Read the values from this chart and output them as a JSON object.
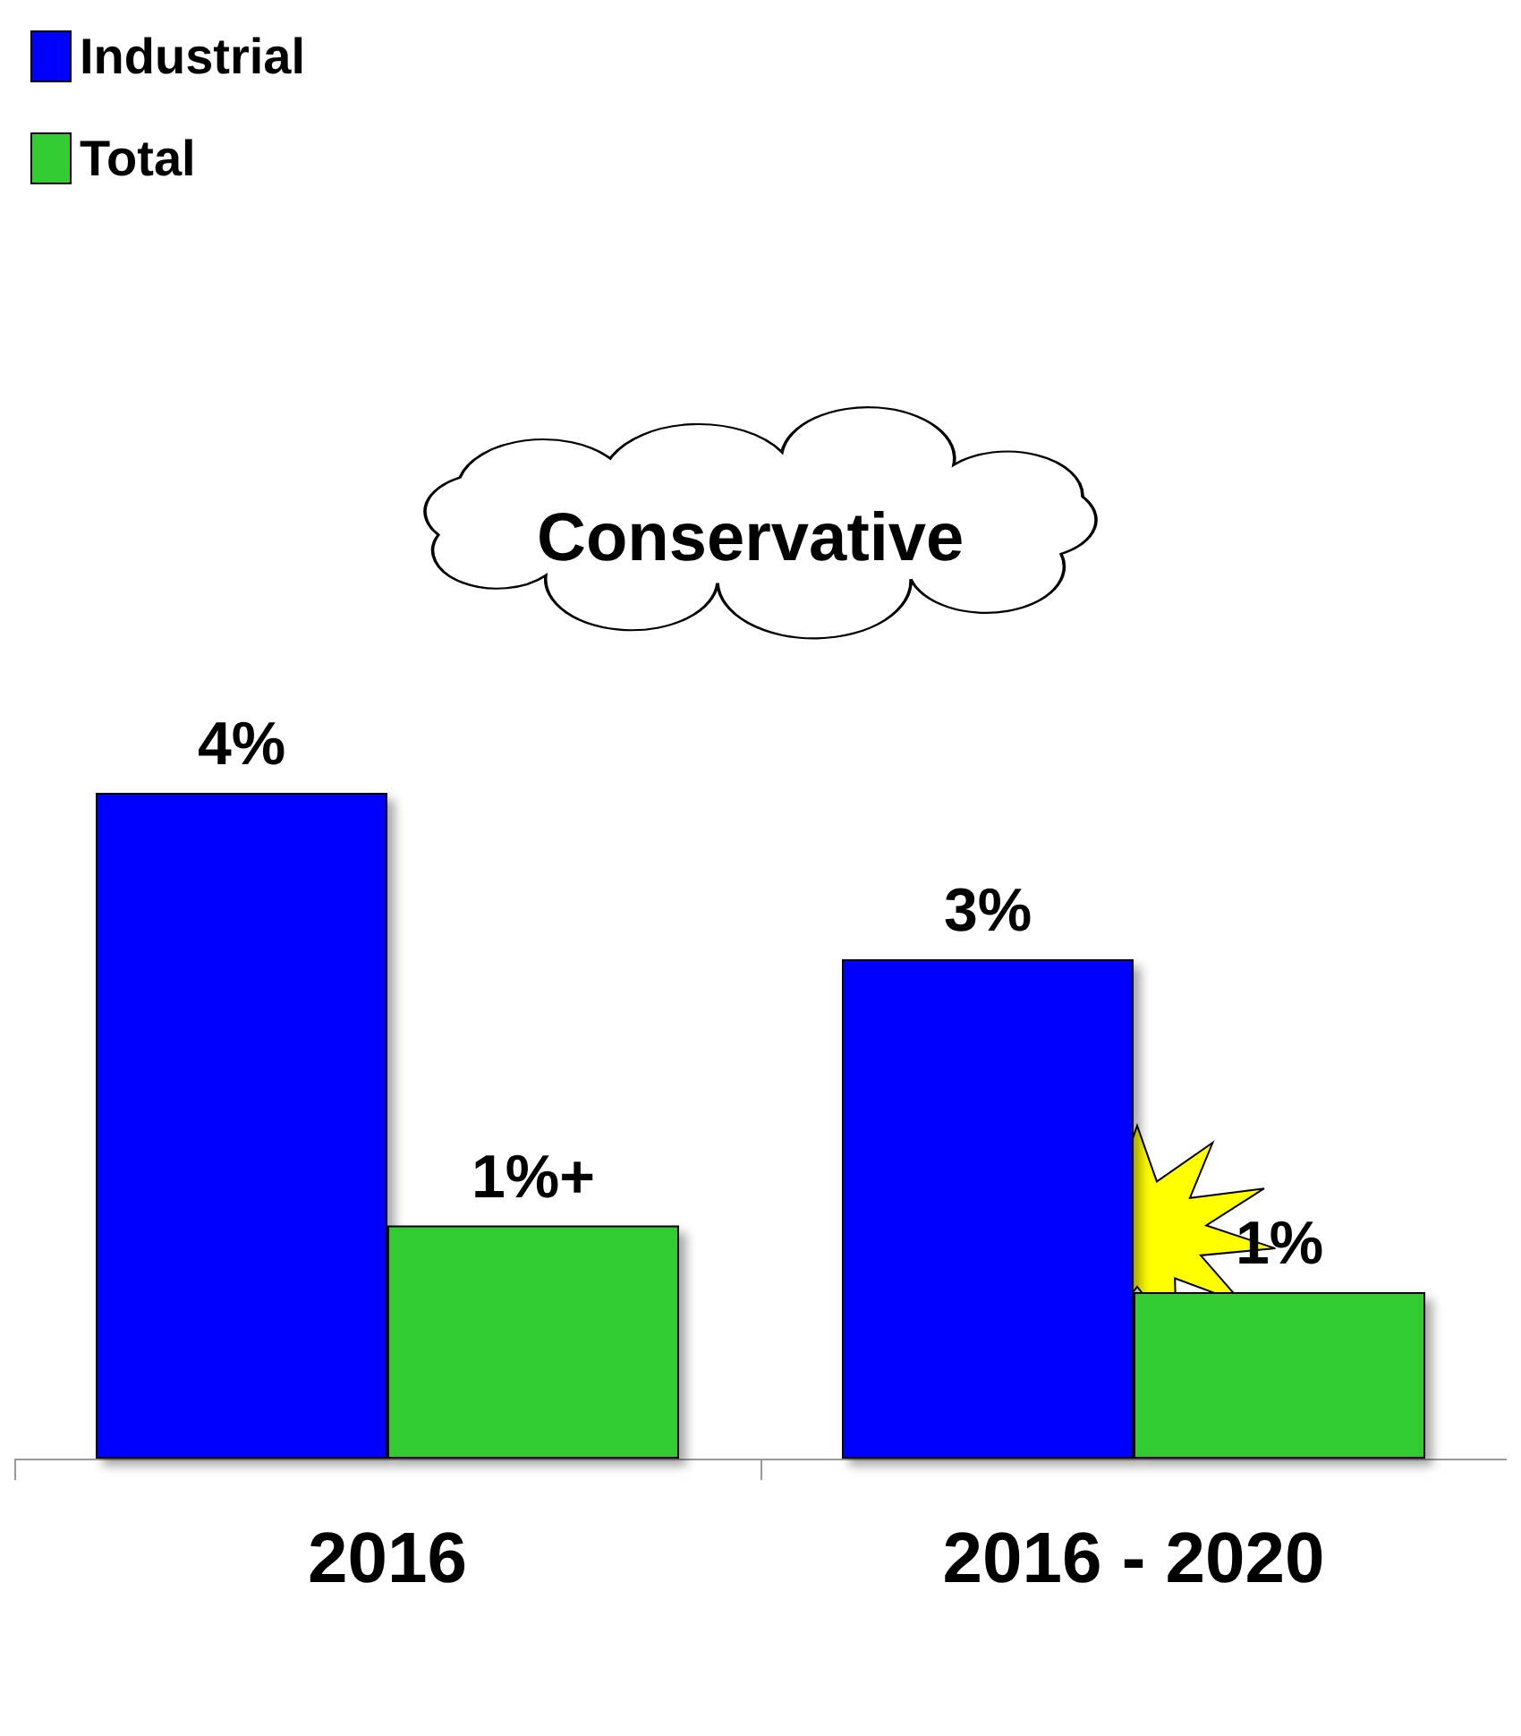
{
  "chart_data": {
    "type": "bar",
    "categories": [
      "2016",
      "2016 - 2020"
    ],
    "series": [
      {
        "name": "Industrial",
        "color": "#0000ff",
        "values": [
          4,
          3
        ],
        "value_labels": [
          "4%",
          "3%"
        ]
      },
      {
        "name": "Total",
        "color": "#33cc33",
        "values": [
          1.4,
          1
        ],
        "value_labels": [
          "1%+",
          "1%"
        ]
      }
    ],
    "annotations": [
      "Conservative"
    ],
    "legend": "top left",
    "grid": false
  }
}
